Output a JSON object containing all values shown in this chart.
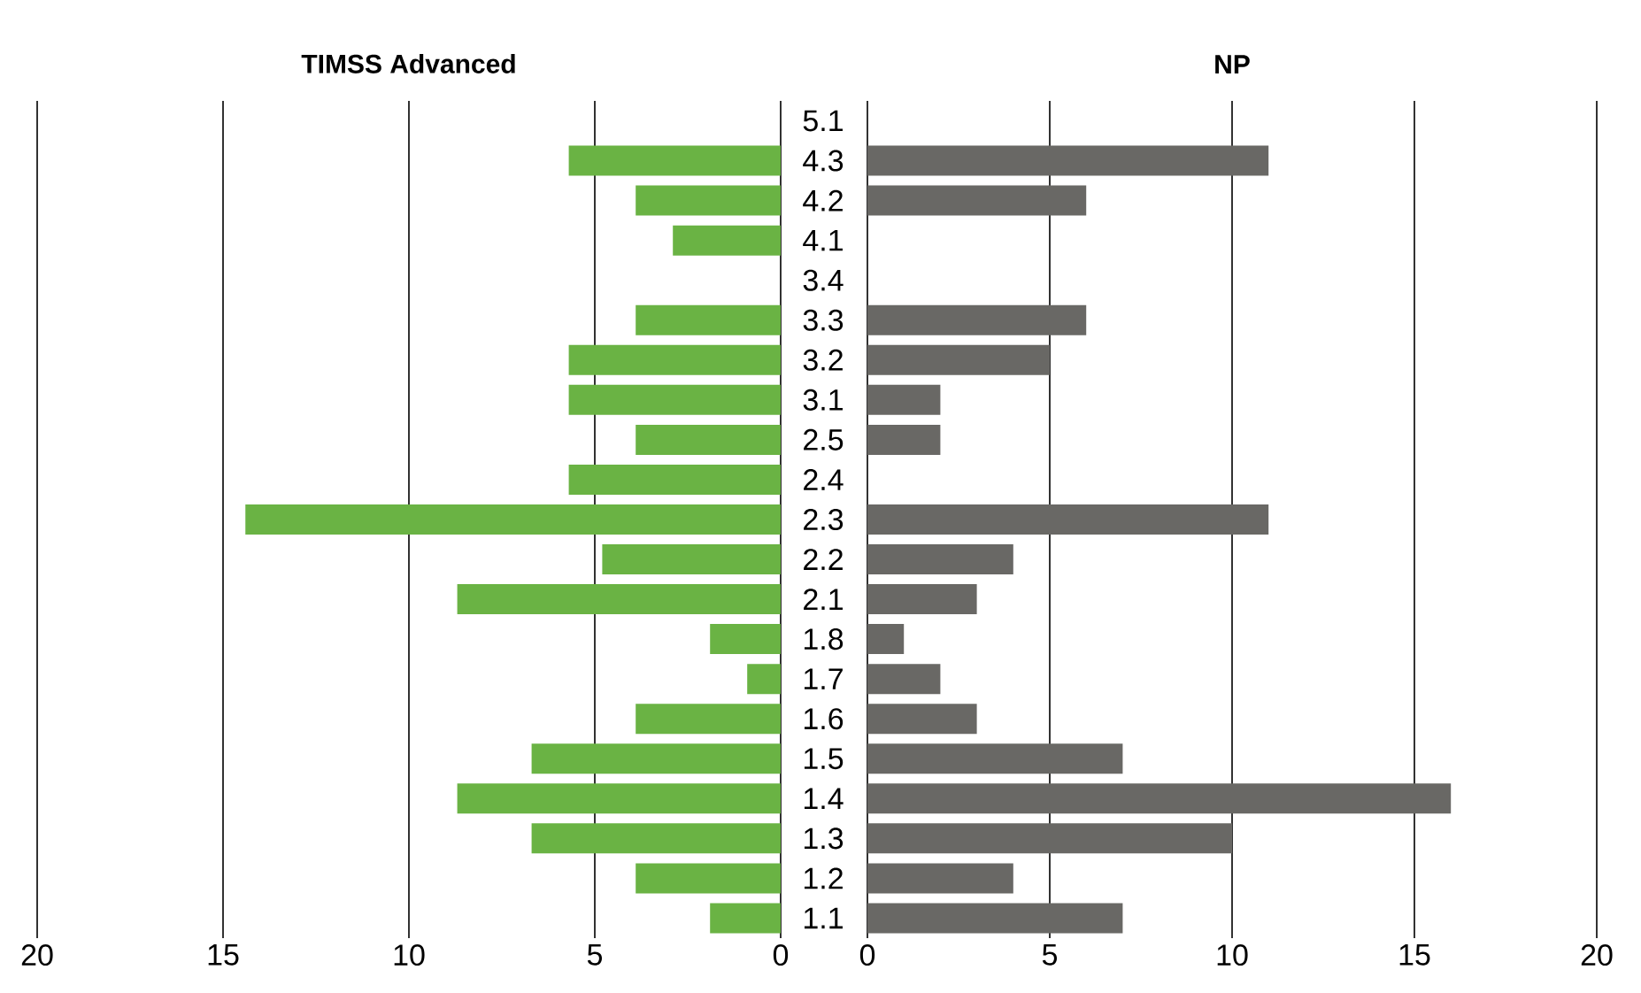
{
  "chart_data": [
    {
      "type": "bar",
      "orientation": "horizontal",
      "title": "TIMSS Advanced",
      "categories": [
        "5.1",
        "4.3",
        "4.2",
        "4.1",
        "3.4",
        "3.3",
        "3.2",
        "3.1",
        "2.5",
        "2.4",
        "2.3",
        "2.2",
        "2.1",
        "1.8",
        "1.7",
        "1.6",
        "1.5",
        "1.4",
        "1.3",
        "1.2",
        "1.1"
      ],
      "values": [
        0,
        5.7,
        3.9,
        2.9,
        0,
        3.9,
        5.7,
        5.7,
        3.9,
        5.7,
        14.4,
        4.8,
        8.7,
        1.9,
        0.9,
        3.9,
        6.7,
        8.7,
        6.7,
        3.9,
        1.9
      ],
      "color": "#6ab344",
      "xlim": [
        20,
        0
      ],
      "xticks": [
        20,
        15,
        10,
        5,
        0
      ],
      "grid": "x",
      "tick_labels": "x"
    },
    {
      "type": "bar",
      "orientation": "horizontal",
      "title": "NP",
      "categories": [
        "5.1",
        "4.3",
        "4.2",
        "4.1",
        "3.4",
        "3.3",
        "3.2",
        "3.1",
        "2.5",
        "2.4",
        "2.3",
        "2.2",
        "2.1",
        "1.8",
        "1.7",
        "1.6",
        "1.5",
        "1.4",
        "1.3",
        "1.2",
        "1.1"
      ],
      "values": [
        0,
        11,
        6,
        0,
        0,
        6,
        5,
        2,
        2,
        0,
        11,
        4,
        3,
        1,
        2,
        3,
        7,
        16,
        10,
        4,
        7
      ],
      "color": "#696865",
      "xlim": [
        0,
        20
      ],
      "xticks": [
        0,
        5,
        10,
        15,
        20
      ],
      "grid": "x"
    }
  ]
}
